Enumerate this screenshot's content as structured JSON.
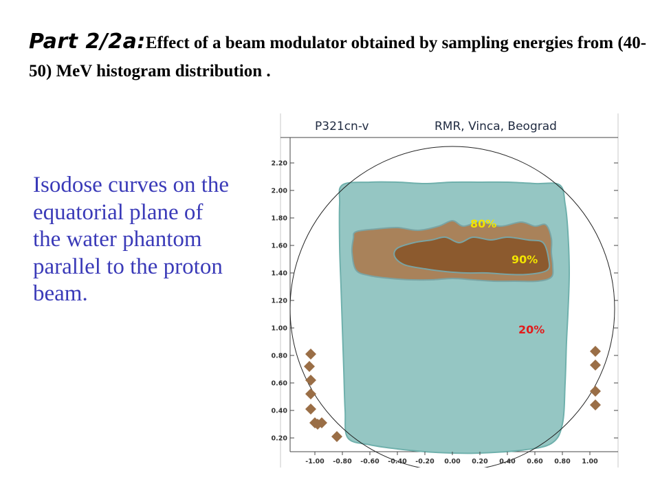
{
  "title": {
    "part": "Part 2/2a:",
    "rest": "Effect of a beam modulator obtained by sampling energies from (40-50) MeV histogram distribution ."
  },
  "description": "Isodose curves on the equatorial plane of the water phantom parallel to the proton beam.",
  "chart_data": {
    "type": "contour",
    "header_left": "P321cn-v",
    "header_right": "RMR, Vinca, Beograd",
    "xlim": [
      -1.15,
      1.15
    ],
    "ylim": [
      0.1,
      2.35
    ],
    "x_ticks": [
      -1.0,
      -0.8,
      -0.6,
      -0.4,
      -0.2,
      0.0,
      0.2,
      0.4,
      0.6,
      0.8,
      1.0
    ],
    "y_ticks": [
      0.2,
      0.4,
      0.6,
      0.8,
      1.0,
      1.2,
      1.4,
      1.6,
      1.8,
      2.0,
      2.2
    ],
    "phantom_circle": {
      "cx": 0.0,
      "cy": 1.14,
      "r": 1.18
    },
    "isodose_levels": [
      {
        "label": "20%",
        "label_pos": [
          0.48,
          0.96
        ],
        "label_color": "#e21b1b",
        "fill": "#95c6c3",
        "stroke": "#6fb0ac",
        "boundary": [
          [
            -0.8,
            2.04
          ],
          [
            -0.6,
            2.06
          ],
          [
            -0.4,
            2.06
          ],
          [
            -0.2,
            2.05
          ],
          [
            0.0,
            2.06
          ],
          [
            0.2,
            2.06
          ],
          [
            0.4,
            2.06
          ],
          [
            0.6,
            2.05
          ],
          [
            0.78,
            2.04
          ],
          [
            0.82,
            1.9
          ],
          [
            0.84,
            1.7
          ],
          [
            0.85,
            1.4
          ],
          [
            0.84,
            1.1
          ],
          [
            0.83,
            0.9
          ],
          [
            0.82,
            0.6
          ],
          [
            0.8,
            0.3
          ],
          [
            0.72,
            0.16
          ],
          [
            0.5,
            0.11
          ],
          [
            0.2,
            0.09
          ],
          [
            0.0,
            0.09
          ],
          [
            -0.2,
            0.1
          ],
          [
            -0.4,
            0.12
          ],
          [
            -0.6,
            0.15
          ],
          [
            -0.76,
            0.2
          ],
          [
            -0.78,
            0.4
          ],
          [
            -0.79,
            0.7
          ],
          [
            -0.8,
            1.0
          ],
          [
            -0.81,
            1.3
          ],
          [
            -0.82,
            1.6
          ],
          [
            -0.82,
            1.9
          ]
        ]
      },
      {
        "label": "80%",
        "label_pos": [
          0.13,
          1.73
        ],
        "label_color": "#f2e400",
        "fill": "#a9825a",
        "stroke": "#7aa4a4",
        "boundary": [
          [
            -0.7,
            1.7
          ],
          [
            -0.55,
            1.72
          ],
          [
            -0.4,
            1.73
          ],
          [
            -0.25,
            1.71
          ],
          [
            -0.1,
            1.74
          ],
          [
            0.0,
            1.78
          ],
          [
            0.08,
            1.74
          ],
          [
            0.2,
            1.77
          ],
          [
            0.35,
            1.74
          ],
          [
            0.5,
            1.77
          ],
          [
            0.6,
            1.74
          ],
          [
            0.68,
            1.75
          ],
          [
            0.72,
            1.65
          ],
          [
            0.72,
            1.55
          ],
          [
            0.73,
            1.45
          ],
          [
            0.72,
            1.37
          ],
          [
            0.62,
            1.34
          ],
          [
            0.45,
            1.34
          ],
          [
            0.3,
            1.34
          ],
          [
            0.15,
            1.35
          ],
          [
            0.0,
            1.36
          ],
          [
            -0.15,
            1.35
          ],
          [
            -0.3,
            1.35
          ],
          [
            -0.45,
            1.36
          ],
          [
            -0.6,
            1.38
          ],
          [
            -0.7,
            1.42
          ],
          [
            -0.73,
            1.55
          ],
          [
            -0.72,
            1.65
          ]
        ]
      },
      {
        "label": "90%",
        "label_pos": [
          0.43,
          1.47
        ],
        "label_color": "#f2e400",
        "fill": "#8c5a2e",
        "stroke": "#7aa4a4",
        "boundary": [
          [
            -0.4,
            1.58
          ],
          [
            -0.28,
            1.62
          ],
          [
            -0.15,
            1.64
          ],
          [
            -0.05,
            1.66
          ],
          [
            0.05,
            1.62
          ],
          [
            0.15,
            1.66
          ],
          [
            0.28,
            1.64
          ],
          [
            0.4,
            1.66
          ],
          [
            0.55,
            1.64
          ],
          [
            0.66,
            1.62
          ],
          [
            0.7,
            1.5
          ],
          [
            0.69,
            1.42
          ],
          [
            0.55,
            1.39
          ],
          [
            0.4,
            1.39
          ],
          [
            0.25,
            1.4
          ],
          [
            0.1,
            1.4
          ],
          [
            -0.05,
            1.41
          ],
          [
            -0.2,
            1.43
          ],
          [
            -0.35,
            1.46
          ],
          [
            -0.42,
            1.52
          ]
        ]
      }
    ],
    "annotations": [
      "80%",
      "90%",
      "20%"
    ],
    "marker_color": "#9a6e46",
    "markers_left": [
      [
        -1.03,
        0.81
      ],
      [
        -1.04,
        0.72
      ],
      [
        -1.03,
        0.62
      ],
      [
        -1.03,
        0.52
      ],
      [
        -1.03,
        0.41
      ],
      [
        -1.0,
        0.31
      ],
      [
        -0.98,
        0.3
      ],
      [
        -0.95,
        0.31
      ],
      [
        -0.84,
        0.21
      ]
    ],
    "markers_right": [
      [
        1.04,
        0.83
      ],
      [
        1.04,
        0.73
      ],
      [
        1.04,
        0.54
      ],
      [
        1.04,
        0.44
      ]
    ]
  }
}
